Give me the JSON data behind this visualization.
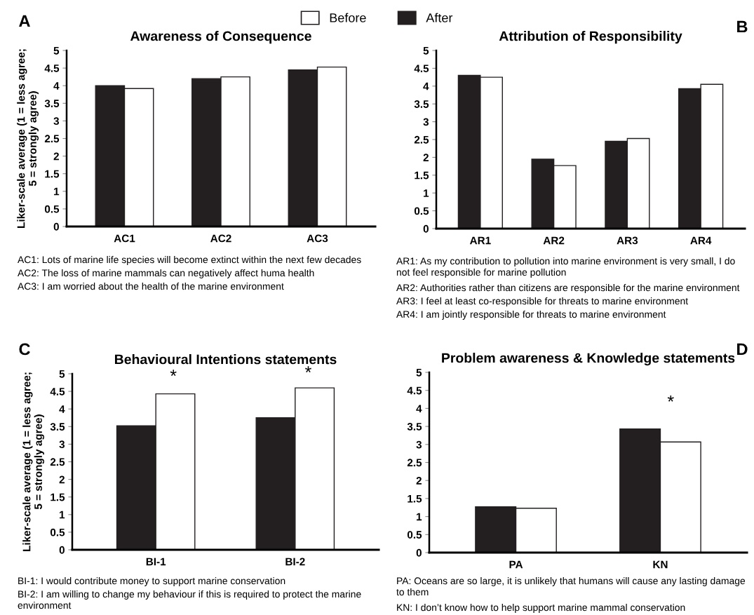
{
  "chart_data": [
    {
      "type": "bar",
      "title": "Awareness of Consequence",
      "ylabel": "Liker-scale average (1 = less agree;\n5 = strongly agree)",
      "categories": [
        "AC1",
        "AC2",
        "AC3"
      ],
      "series": [
        {
          "name": "After",
          "color": "#231f20",
          "values": [
            4.0,
            4.2,
            4.45
          ]
        },
        {
          "name": "Before",
          "color": "#ffffff",
          "values": [
            3.92,
            4.25,
            4.53
          ]
        }
      ],
      "ylim": [
        0,
        5
      ],
      "yticks": [
        0,
        0.5,
        1,
        1.5,
        2,
        2.5,
        3,
        3.5,
        4,
        4.5,
        5
      ],
      "grid": false,
      "legend": "top",
      "annotations": [
        "A",
        "AC1: Lots of marine life species will become extinct within the next few decades",
        "AC2: The loss of marine mammals can negatively affect huma health",
        "AC3: I am worried about the health of the marine environment"
      ]
    },
    {
      "type": "bar",
      "title": "Attribution of Responsibility",
      "categories": [
        "AR1",
        "AR2",
        "AR3",
        "AR4"
      ],
      "series": [
        {
          "color": "#231f20",
          "values": [
            4.3,
            1.95,
            2.45,
            3.93
          ]
        },
        {
          "color": "#ffffff",
          "values": [
            4.25,
            1.77,
            2.53,
            4.05
          ]
        }
      ],
      "ylim": [
        0,
        5
      ],
      "yticks": [
        0,
        0.5,
        1,
        1.5,
        2,
        2.5,
        3,
        3.5,
        4,
        4.5,
        5
      ],
      "grid": false,
      "legend": false,
      "annotations": [
        "B",
        "AR1: As my contribution to pollution into marine environment is very small, I do not feel responsible for marine pollution",
        "AR2: Authorities rather than citizens are responsible for the marine environment",
        "AR3: I feel at least co-responsible for threats to marine environment",
        "AR4: I am jointly responsible for threats to marine environment"
      ]
    },
    {
      "type": "bar",
      "title": "Behavioural Intentions statements",
      "ylabel": "Liker-scale average (1 = less agree;\n5 = strongly agree)",
      "categories": [
        "BI-1",
        "BI-2"
      ],
      "series": [
        {
          "color": "#231f20",
          "values": [
            3.52,
            3.75
          ]
        },
        {
          "color": "#ffffff",
          "values": [
            4.43,
            4.6
          ]
        }
      ],
      "ylim": [
        0,
        5
      ],
      "yticks": [
        0,
        0.5,
        1,
        1.5,
        2,
        2.5,
        3,
        3.5,
        4,
        4.5,
        5
      ],
      "grid": false,
      "legend": false,
      "annotations": [
        "C",
        "*",
        "*",
        "BI-1: I would contribute money to support marine conservation",
        "BI-2: I am willing to change my behaviour if this is required to protect the marine environment"
      ]
    },
    {
      "type": "bar",
      "title": "Problem awareness & Knowledge statements",
      "categories": [
        "PA",
        "KN"
      ],
      "series": [
        {
          "color": "#231f20",
          "values": [
            1.27,
            3.43
          ]
        },
        {
          "color": "#ffffff",
          "values": [
            1.23,
            3.07
          ]
        }
      ],
      "ylim": [
        0,
        5
      ],
      "yticks": [
        0,
        0.5,
        1,
        1.5,
        2,
        2.5,
        3,
        3.5,
        4,
        4.5,
        5
      ],
      "grid": false,
      "legend": false,
      "annotations": [
        "D",
        "*",
        "PA: Oceans are so large, it is unlikely that humans will cause any lasting damage to them",
        "KN: I don’t know how to help support marine mammal conservation"
      ]
    }
  ]
}
